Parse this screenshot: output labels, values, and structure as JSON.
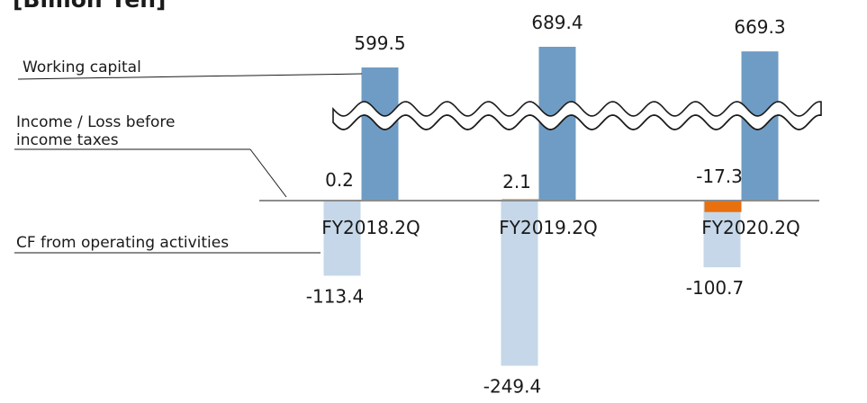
{
  "unit_label": "[Billion Yen]",
  "legend": {
    "working_capital": "Working capital",
    "income": [
      "Income / Loss before",
      "income taxes"
    ],
    "cf": "CF from operating activities"
  },
  "colors": {
    "working_capital": "#6f9cc4",
    "income": "#e8700f",
    "cf": "#c5d7e8",
    "axis": "#8c8c8c",
    "break": "#1a1a1a"
  },
  "chart_data": {
    "type": "bar",
    "categories": [
      "FY2018.2Q",
      "FY2019.2Q",
      "FY2020.2Q"
    ],
    "axis_break": true,
    "series": [
      {
        "name": "CF from operating activities",
        "values": [
          -113.4,
          -249.4,
          -100.7
        ]
      },
      {
        "name": "Income / Loss before income taxes",
        "values": [
          0.2,
          2.1,
          -17.3
        ]
      },
      {
        "name": "Working capital",
        "values": [
          599.5,
          689.4,
          669.3
        ]
      }
    ],
    "value_labels": {
      "cf": [
        "-113.4",
        "-249.4",
        "-100.7"
      ],
      "income": [
        "0.2",
        "2.1",
        "-17.3"
      ],
      "working_capital": [
        "599.5",
        "689.4",
        "669.3"
      ]
    }
  }
}
